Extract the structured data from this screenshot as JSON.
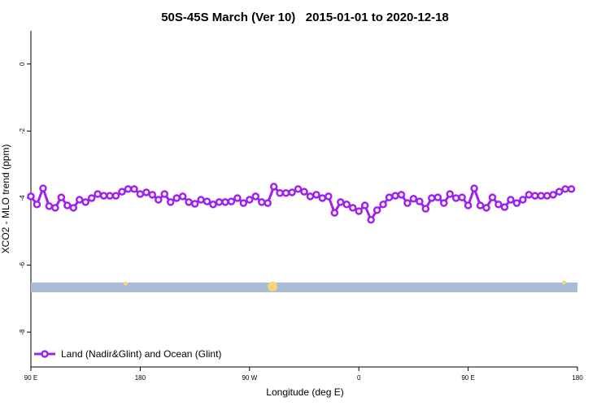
{
  "chart_data": {
    "type": "line",
    "title": "50S-45S March (Ver 10)   2015-01-01 to 2020-12-18",
    "x_label": "Longitude (deg E)",
    "y_label": "XCO2 - MLO trend (ppm)",
    "xlim": [
      90,
      540
    ],
    "ylim": [
      -9.04,
      0.99
    ],
    "xticks": [
      {
        "value": 90,
        "label": "90 E"
      },
      180,
      {
        "value": 270,
        "label": "90 W"
      },
      {
        "value": 360,
        "label": "0"
      },
      {
        "value": 450,
        "label": "90 E"
      },
      {
        "value": 540,
        "label": "180"
      }
    ],
    "yticks": [
      0,
      -2,
      -4,
      -6,
      -8
    ],
    "legend": "bottom-left",
    "series": [
      {
        "name": "Land (Nadir&Glint) and Ocean (Glint)",
        "color": "#a020f0",
        "x": [
          90,
          95,
          100,
          105,
          110,
          115,
          120,
          125,
          130,
          135,
          140,
          145,
          150,
          155,
          160,
          165,
          170,
          175,
          180,
          185,
          190,
          195,
          200,
          205,
          210,
          215,
          220,
          225,
          230,
          235,
          240,
          245,
          250,
          255,
          260,
          265,
          270,
          275,
          280,
          285,
          290,
          295,
          300,
          305,
          310,
          315,
          320,
          325,
          330,
          335,
          340,
          345,
          350,
          355,
          360,
          365,
          370,
          375,
          380,
          385,
          390,
          395,
          400,
          405,
          410,
          415,
          420,
          425,
          430,
          435,
          440,
          445,
          450,
          455,
          460,
          465,
          470,
          475,
          480,
          485,
          490,
          495,
          500,
          505,
          510,
          515,
          520,
          525,
          530,
          535
        ],
        "values": [
          -3.95,
          -4.19,
          -3.71,
          -4.24,
          -4.29,
          -3.98,
          -4.22,
          -4.29,
          -4.05,
          -4.12,
          -4.0,
          -3.88,
          -3.93,
          -3.93,
          -3.93,
          -3.81,
          -3.73,
          -3.73,
          -3.88,
          -3.83,
          -3.9,
          -4.05,
          -3.88,
          -4.12,
          -4.0,
          -3.95,
          -4.12,
          -4.17,
          -4.05,
          -4.1,
          -4.19,
          -4.12,
          -4.12,
          -4.1,
          -4.0,
          -4.15,
          -4.05,
          -3.95,
          -4.12,
          -4.15,
          -3.66,
          -3.85,
          -3.85,
          -3.83,
          -3.73,
          -3.81,
          -3.95,
          -3.9,
          -4.0,
          -3.95,
          -4.44,
          -4.12,
          -4.19,
          -4.29,
          -4.39,
          -4.22,
          -4.65,
          -4.36,
          -4.19,
          -3.98,
          -3.93,
          -3.9,
          -4.15,
          -4.02,
          -4.1,
          -4.32,
          -4.0,
          -3.98,
          -4.15,
          -3.88,
          -4.0,
          -3.98,
          -4.22,
          -3.71,
          -4.22,
          -4.29,
          -3.98,
          -4.19,
          -4.27,
          -4.05,
          -4.15,
          -4.05,
          -3.9,
          -3.93,
          -3.93,
          -3.93,
          -3.9,
          -3.81,
          -3.73,
          -3.73
        ]
      }
    ],
    "band": {
      "values": [
        -6.81,
        -6.52
      ],
      "color": "#a8bcd8"
    },
    "markers": {
      "color": "#f7d774",
      "x": [
        168,
        289,
        529
      ],
      "values": [
        -6.55,
        -6.64,
        -6.52
      ]
    }
  }
}
